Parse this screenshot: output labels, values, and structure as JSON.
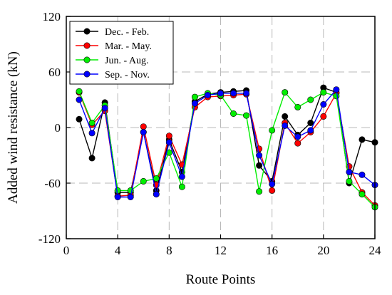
{
  "chart_data": {
    "type": "line",
    "title": "",
    "xlabel": "Route Points",
    "ylabel": "Added wind resistance (kN)",
    "xlim": [
      0,
      24
    ],
    "ylim": [
      -120,
      120
    ],
    "xticks": [
      0,
      4,
      8,
      12,
      16,
      20,
      24
    ],
    "yticks": [
      -120,
      -60,
      0,
      60,
      120
    ],
    "grid": true,
    "legend_position": "top-left",
    "x": [
      1,
      2,
      3,
      4,
      5,
      6,
      7,
      8,
      9,
      10,
      11,
      12,
      13,
      14,
      15,
      16,
      17,
      18,
      19,
      20,
      21,
      22,
      23,
      24
    ],
    "series": [
      {
        "name": "Dec. - Feb.",
        "color": "#000000",
        "values": [
          9,
          -33,
          27,
          -70,
          -70,
          -5,
          -68,
          -13,
          -48,
          28,
          36,
          38,
          39,
          40,
          -41,
          -58,
          12,
          -8,
          5,
          43,
          38,
          -60,
          -13,
          -16
        ]
      },
      {
        "name": "Mar. - May.",
        "color": "#ff0000",
        "values": [
          38,
          3,
          18,
          -74,
          -73,
          1,
          -62,
          -9,
          -40,
          22,
          33,
          34,
          35,
          36,
          -23,
          -68,
          5,
          -17,
          -5,
          12,
          37,
          -42,
          -70,
          -84
        ]
      },
      {
        "name": "Jun. - Aug.",
        "color": "#00ee00",
        "values": [
          39,
          5,
          24,
          -68,
          -68,
          -58,
          -55,
          -27,
          -64,
          33,
          37,
          35,
          15,
          13,
          -69,
          -3,
          38,
          22,
          30,
          38,
          34,
          -58,
          -72,
          -86
        ]
      },
      {
        "name": "Sep. - Nov.",
        "color": "#0000ff",
        "values": [
          30,
          -6,
          21,
          -75,
          -75,
          -5,
          -72,
          -16,
          -53,
          26,
          35,
          37,
          37,
          37,
          -30,
          -61,
          2,
          -10,
          -3,
          25,
          41,
          -48,
          -51,
          -62
        ]
      }
    ]
  }
}
